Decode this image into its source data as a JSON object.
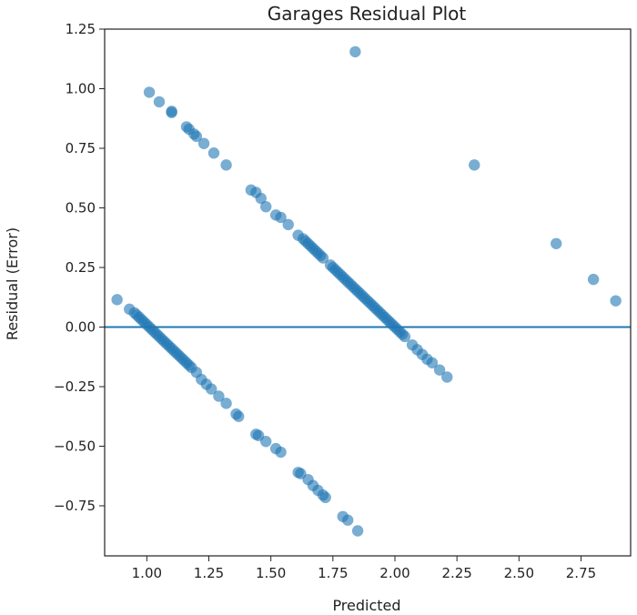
{
  "chart_data": {
    "type": "scatter",
    "title": "Garages Residual Plot",
    "xlabel": "Predicted",
    "ylabel": "Residual (Error)",
    "xlim": [
      0.83,
      2.95
    ],
    "ylim": [
      -0.96,
      1.25
    ],
    "xticks": [
      "1.00",
      "1.25",
      "1.50",
      "1.75",
      "2.00",
      "2.25",
      "2.50",
      "2.75"
    ],
    "xtick_values": [
      1.0,
      1.25,
      1.5,
      1.75,
      2.0,
      2.25,
      2.5,
      2.75
    ],
    "yticks": [
      "1.25",
      "1.00",
      "0.75",
      "0.50",
      "0.25",
      "0.00",
      "−0.25",
      "−0.50",
      "−0.75"
    ],
    "ytick_values": [
      1.25,
      1.0,
      0.75,
      0.5,
      0.25,
      0.0,
      -0.25,
      -0.5,
      -0.75
    ],
    "reference_line_y": 0,
    "marker_color": "#1f77b4",
    "marker_alpha": 0.6,
    "grid": false,
    "series": [
      {
        "points": [
          [
            0.88,
            0.115
          ],
          [
            0.93,
            0.075
          ],
          [
            0.95,
            0.06
          ],
          [
            0.96,
            0.05
          ],
          [
            0.97,
            0.04
          ],
          [
            0.98,
            0.03
          ],
          [
            0.99,
            0.02
          ],
          [
            1.0,
            0.01
          ],
          [
            1.01,
            0.0
          ],
          [
            1.02,
            -0.01
          ],
          [
            1.03,
            -0.02
          ],
          [
            1.04,
            -0.03
          ],
          [
            1.05,
            -0.04
          ],
          [
            1.06,
            -0.05
          ],
          [
            1.07,
            -0.06
          ],
          [
            1.08,
            -0.07
          ],
          [
            1.09,
            -0.08
          ],
          [
            1.1,
            -0.09
          ],
          [
            1.11,
            -0.1
          ],
          [
            1.12,
            -0.11
          ],
          [
            1.13,
            -0.12
          ],
          [
            1.14,
            -0.13
          ],
          [
            1.15,
            -0.14
          ],
          [
            1.16,
            -0.15
          ],
          [
            1.17,
            -0.16
          ],
          [
            1.18,
            -0.17
          ],
          [
            1.2,
            -0.19
          ],
          [
            1.22,
            -0.22
          ],
          [
            1.24,
            -0.24
          ],
          [
            1.26,
            -0.26
          ],
          [
            1.29,
            -0.29
          ],
          [
            1.32,
            -0.32
          ],
          [
            1.36,
            -0.365
          ],
          [
            1.37,
            -0.375
          ],
          [
            1.44,
            -0.45
          ],
          [
            1.45,
            -0.455
          ],
          [
            1.48,
            -0.48
          ],
          [
            1.52,
            -0.51
          ],
          [
            1.54,
            -0.525
          ],
          [
            1.61,
            -0.61
          ],
          [
            1.62,
            -0.615
          ],
          [
            1.65,
            -0.64
          ],
          [
            1.67,
            -0.665
          ],
          [
            1.69,
            -0.685
          ],
          [
            1.71,
            -0.705
          ],
          [
            1.72,
            -0.715
          ],
          [
            1.79,
            -0.795
          ],
          [
            1.81,
            -0.81
          ],
          [
            1.85,
            -0.855
          ]
        ]
      },
      {
        "points": [
          [
            1.01,
            0.985
          ],
          [
            1.05,
            0.945
          ],
          [
            1.1,
            0.905
          ],
          [
            1.1,
            0.9
          ],
          [
            1.16,
            0.84
          ],
          [
            1.17,
            0.83
          ],
          [
            1.19,
            0.81
          ],
          [
            1.2,
            0.8
          ],
          [
            1.23,
            0.77
          ],
          [
            1.27,
            0.73
          ],
          [
            1.32,
            0.68
          ],
          [
            1.42,
            0.575
          ],
          [
            1.44,
            0.565
          ],
          [
            1.46,
            0.54
          ],
          [
            1.48,
            0.505
          ],
          [
            1.52,
            0.47
          ],
          [
            1.54,
            0.46
          ],
          [
            1.57,
            0.43
          ],
          [
            1.61,
            0.385
          ],
          [
            1.63,
            0.37
          ],
          [
            1.64,
            0.36
          ],
          [
            1.65,
            0.35
          ],
          [
            1.66,
            0.34
          ],
          [
            1.67,
            0.33
          ],
          [
            1.68,
            0.32
          ],
          [
            1.69,
            0.31
          ],
          [
            1.7,
            0.3
          ],
          [
            1.71,
            0.29
          ],
          [
            1.74,
            0.26
          ],
          [
            1.75,
            0.25
          ],
          [
            1.76,
            0.24
          ],
          [
            1.77,
            0.23
          ],
          [
            1.78,
            0.22
          ],
          [
            1.79,
            0.21
          ],
          [
            1.8,
            0.2
          ],
          [
            1.81,
            0.19
          ],
          [
            1.82,
            0.18
          ],
          [
            1.83,
            0.17
          ],
          [
            1.84,
            0.16
          ],
          [
            1.85,
            0.15
          ],
          [
            1.86,
            0.14
          ],
          [
            1.87,
            0.13
          ],
          [
            1.88,
            0.12
          ],
          [
            1.89,
            0.11
          ],
          [
            1.9,
            0.1
          ],
          [
            1.91,
            0.09
          ],
          [
            1.92,
            0.08
          ],
          [
            1.93,
            0.07
          ],
          [
            1.94,
            0.06
          ],
          [
            1.95,
            0.05
          ],
          [
            1.96,
            0.04
          ],
          [
            1.97,
            0.03
          ],
          [
            1.98,
            0.02
          ],
          [
            1.99,
            0.01
          ],
          [
            2.0,
            0.0
          ],
          [
            2.01,
            -0.01
          ],
          [
            2.02,
            -0.02
          ],
          [
            2.03,
            -0.03
          ],
          [
            2.04,
            -0.04
          ],
          [
            2.07,
            -0.075
          ],
          [
            2.09,
            -0.095
          ],
          [
            2.11,
            -0.115
          ],
          [
            2.13,
            -0.135
          ],
          [
            2.15,
            -0.15
          ],
          [
            2.18,
            -0.18
          ],
          [
            2.21,
            -0.21
          ]
        ]
      },
      {
        "points": [
          [
            1.84,
            1.155
          ],
          [
            2.32,
            0.68
          ],
          [
            2.65,
            0.35
          ],
          [
            2.8,
            0.2
          ],
          [
            2.89,
            0.11
          ]
        ]
      }
    ]
  }
}
